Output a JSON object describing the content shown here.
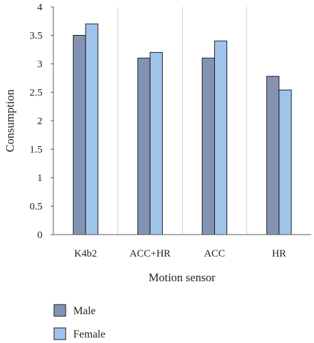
{
  "chart_data": {
    "type": "bar",
    "categories": [
      "K4b2",
      "ACC+HR",
      "ACC",
      "HR"
    ],
    "series": [
      {
        "name": "Male",
        "values": [
          3.5,
          3.1,
          3.1,
          2.78
        ],
        "color": "#8394b3"
      },
      {
        "name": "Female",
        "values": [
          3.7,
          3.2,
          3.4,
          2.54
        ],
        "color": "#9fc4ec"
      }
    ],
    "title": "",
    "xlabel": "Motion sensor",
    "ylabel": "Consumption",
    "ylim": [
      0,
      4
    ],
    "yticks": [
      "0",
      "0.5",
      "1",
      "1.5",
      "2",
      "2.5",
      "3",
      "3.5",
      "4"
    ],
    "grid": "vertical separators",
    "legend": "bottom-left"
  }
}
